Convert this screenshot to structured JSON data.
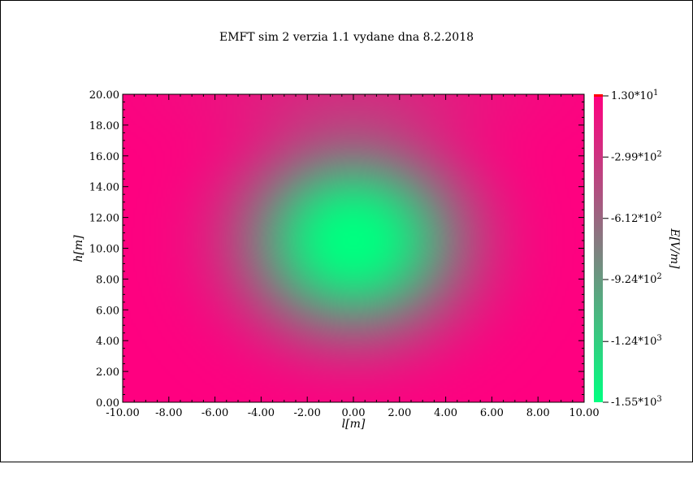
{
  "chart_data": {
    "type": "heatmap",
    "title": "EMFT sim 2 verzia 1.1 vydane dna 8.2.2018",
    "xlabel": "l[m]",
    "ylabel": "h[m]",
    "colorbar_label": "E[V/m]",
    "xlim": [
      -10,
      10
    ],
    "ylim": [
      0,
      20
    ],
    "x_ticks": [
      "-10.00",
      "-8.00",
      "-6.00",
      "-4.00",
      "-2.00",
      "0.00",
      "2.00",
      "4.00",
      "6.00",
      "8.00",
      "10.00"
    ],
    "x_tick_values": [
      -10,
      -8,
      -6,
      -4,
      -2,
      0,
      2,
      4,
      6,
      8,
      10
    ],
    "y_ticks": [
      "0.00",
      "2.00",
      "4.00",
      "6.00",
      "8.00",
      "10.00",
      "12.00",
      "14.00",
      "16.00",
      "18.00",
      "20.00"
    ],
    "y_tick_values": [
      0,
      2,
      4,
      6,
      8,
      10,
      12,
      14,
      16,
      18,
      20
    ],
    "colorbar_ticks": [
      {
        "mantissa": "1.30*10",
        "exp": "1",
        "value": 13
      },
      {
        "mantissa": "-2.99*10",
        "exp": "2",
        "value": -299
      },
      {
        "mantissa": "-6.12*10",
        "exp": "2",
        "value": -612
      },
      {
        "mantissa": "-9.24*10",
        "exp": "2",
        "value": -924
      },
      {
        "mantissa": "-1.24*10",
        "exp": "3",
        "value": -1240
      },
      {
        "mantissa": "-1.55*10",
        "exp": "3",
        "value": -1550
      }
    ],
    "value_range": [
      -1550,
      13
    ],
    "field_center": {
      "l": 0,
      "h": 10.5
    },
    "colormap": {
      "low": "#00ff80",
      "mid": "#808080",
      "high": "#ff0080",
      "top_mark": "#ff0000"
    },
    "grid": false
  }
}
